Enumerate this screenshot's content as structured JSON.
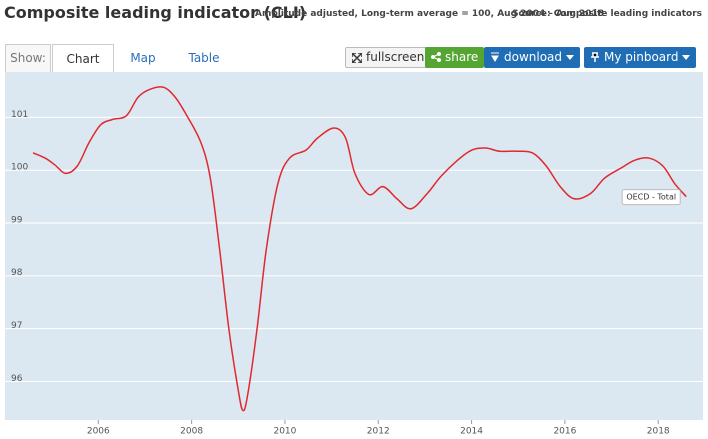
{
  "header": {
    "title": "Composite leading indicator (CLI)",
    "subtitle": "Amplitude adjusted, Long-term average = 100, Aug 2004 – Aug 2018",
    "source": "Source: Composite leading indicators"
  },
  "toolbar": {
    "show_label": "Show:",
    "tabs": [
      "Chart",
      "Map",
      "Table"
    ],
    "buttons": [
      "fullscreen",
      "share",
      "download",
      "My pinboard"
    ]
  },
  "chart_data": {
    "type": "line",
    "x": [
      2004.6,
      2004.86,
      2005.07,
      2005.3,
      2005.55,
      2005.8,
      2006.05,
      2006.3,
      2006.6,
      2006.85,
      2007.1,
      2007.4,
      2007.65,
      2007.9,
      2008.2,
      2008.4,
      2008.6,
      2008.8,
      2009.0,
      2009.1,
      2009.2,
      2009.4,
      2009.6,
      2009.85,
      2010.1,
      2010.45,
      2010.7,
      2011.05,
      2011.3,
      2011.5,
      2011.8,
      2012.1,
      2012.4,
      2012.7,
      2013.05,
      2013.35,
      2013.7,
      2014.0,
      2014.3,
      2014.6,
      2014.95,
      2015.3,
      2015.6,
      2015.9,
      2016.2,
      2016.55,
      2016.85,
      2017.2,
      2017.5,
      2017.8,
      2018.1,
      2018.35,
      2018.6
    ],
    "series": [
      {
        "name": "OECD - Total",
        "color": "#e0282e",
        "values": [
          100.33,
          100.23,
          100.1,
          99.94,
          100.08,
          100.52,
          100.86,
          100.96,
          101.03,
          101.38,
          101.53,
          101.57,
          101.38,
          101.03,
          100.52,
          99.85,
          98.5,
          96.98,
          95.83,
          95.45,
          95.74,
          96.98,
          98.5,
          99.75,
          100.23,
          100.38,
          100.61,
          100.8,
          100.61,
          99.94,
          99.54,
          99.69,
          99.46,
          99.27,
          99.56,
          99.89,
          100.19,
          100.38,
          100.42,
          100.36,
          100.36,
          100.33,
          100.08,
          99.69,
          99.46,
          99.56,
          99.85,
          100.04,
          100.19,
          100.23,
          100.08,
          99.75,
          99.5
        ]
      }
    ],
    "xlim": [
      2004,
      2018.96
    ],
    "ylim": [
      95.27,
      101.86
    ],
    "xticks": [
      2006,
      2008,
      2010,
      2012,
      2014,
      2016,
      2018
    ],
    "yticks": [
      96,
      97,
      98,
      99,
      100,
      101
    ],
    "grid": true
  }
}
